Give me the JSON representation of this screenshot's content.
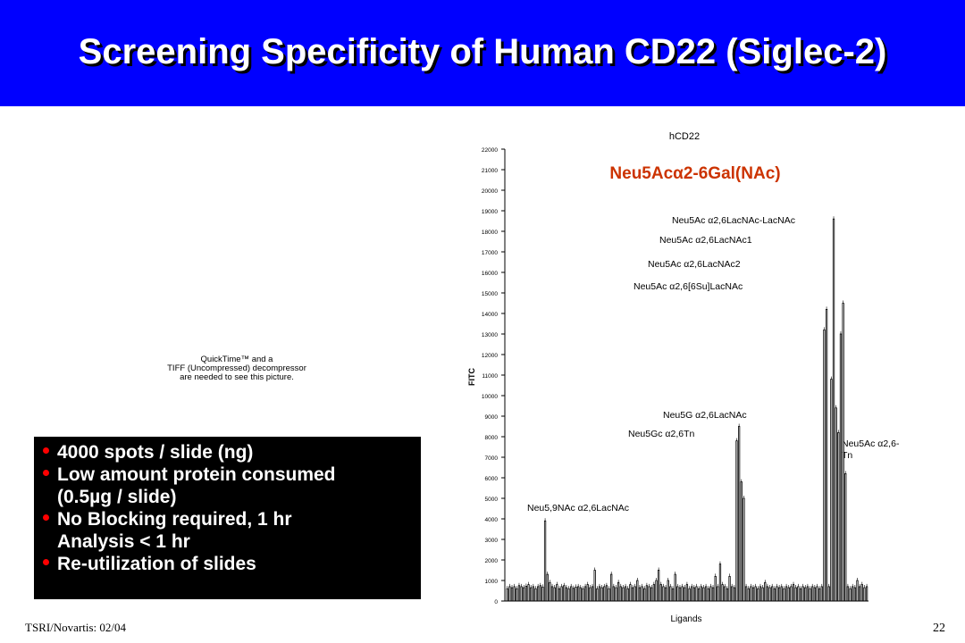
{
  "slide": {
    "title": "Screening Specificity of Human CD22 (Siglec-2)",
    "placeholder_lines": [
      "QuickTime™ and a",
      "TIFF (Uncompressed) decompressor",
      "are needed to see this picture."
    ],
    "bullets": [
      {
        "lines": [
          "4000 spots / slide (ng)"
        ]
      },
      {
        "lines": [
          "Low amount protein consumed",
          "(0.5µg / slide)"
        ]
      },
      {
        "lines": [
          "No Blocking required, 1 hr",
          "Analysis < 1 hr"
        ]
      },
      {
        "lines": [
          "Re-utilization of slides"
        ]
      }
    ],
    "footer_left": "TSRI/Novartis: 02/04",
    "page_number": "22",
    "colors": {
      "title_bg": "#0000ff",
      "title_text": "#ffffff",
      "bullet_dot": "#ff0000",
      "highlight": "#cc3300"
    }
  },
  "chart_data": {
    "type": "bar",
    "title": "hCD22",
    "xlabel": "Ligands",
    "ylabel": "FITC",
    "ylim": [
      0,
      22000
    ],
    "yticks": [
      0,
      1000,
      2000,
      3000,
      4000,
      5000,
      6000,
      7000,
      8000,
      9000,
      10000,
      11000,
      12000,
      13000,
      14000,
      15000,
      16000,
      17000,
      18000,
      19000,
      20000,
      21000,
      22000
    ],
    "highlight_label": "Neu5Acα2-6Gal(NAc)",
    "annotations": [
      "Neu5Ac α2,6LacNAc-LacNAc",
      "Neu5Ac α2,6LacNAc1",
      "Neu5Ac α2,6LacNAc2",
      "Neu5Ac α2,6[6Su]LacNAc",
      "Neu5G α2,6LacNAc",
      "Neu5Gc α2,6Tn",
      "Neu5Ac α2,6-Tn",
      "Neu5,9NAc α2,6LacNAc"
    ],
    "values": [
      600,
      700,
      650,
      700,
      600,
      750,
      700,
      650,
      720,
      800,
      650,
      700,
      600,
      700,
      750,
      680,
      3900,
      1300,
      900,
      700,
      650,
      800,
      600,
      700,
      750,
      650,
      600,
      700,
      620,
      680,
      700,
      650,
      600,
      700,
      800,
      650,
      700,
      1500,
      600,
      700,
      650,
      700,
      750,
      600,
      1300,
      700,
      650,
      900,
      700,
      650,
      700,
      600,
      800,
      650,
      700,
      1000,
      650,
      700,
      600,
      750,
      700,
      650,
      800,
      1000,
      1500,
      800,
      700,
      650,
      1000,
      700,
      600,
      1300,
      700,
      650,
      700,
      650,
      800,
      600,
      700,
      650,
      700,
      600,
      700,
      650,
      700,
      600,
      700,
      650,
      1200,
      700,
      1800,
      800,
      700,
      600,
      1200,
      700,
      650,
      7800,
      8500,
      5800,
      5000,
      700,
      600,
      700,
      650,
      700,
      600,
      700,
      650,
      900,
      700,
      650,
      700,
      600,
      700,
      650,
      700,
      600,
      700,
      650,
      700,
      800,
      650,
      700,
      600,
      700,
      650,
      700,
      600,
      700,
      650,
      700,
      600,
      700,
      13200,
      14200,
      700,
      10800,
      18600,
      9400,
      8200,
      13000,
      14500,
      6200,
      700,
      600,
      700,
      650,
      1000,
      700,
      800,
      650,
      700
    ]
  }
}
